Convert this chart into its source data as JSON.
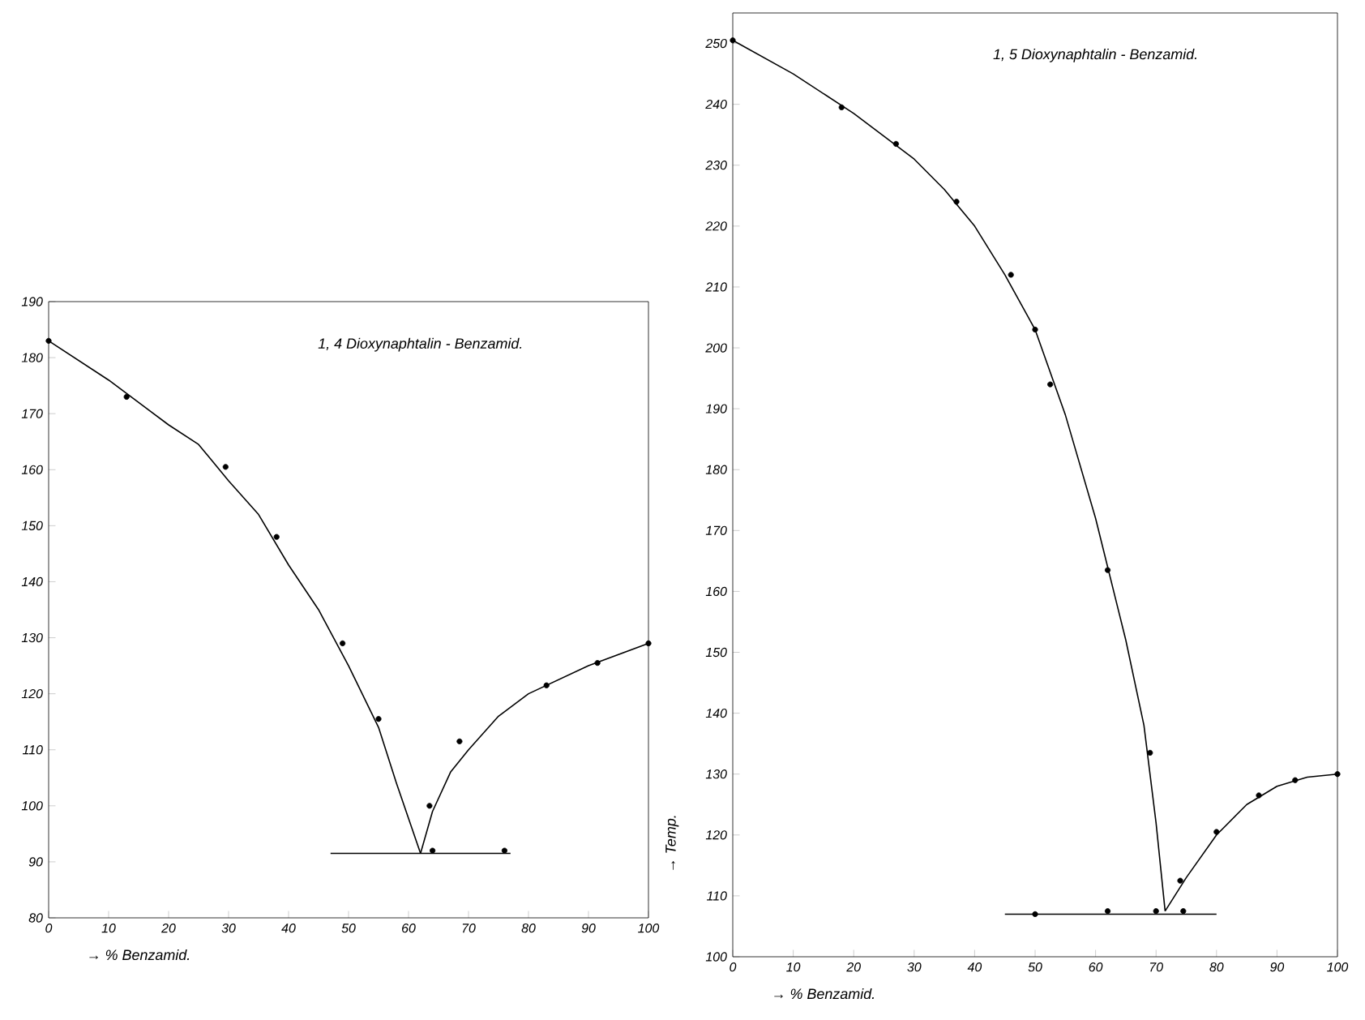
{
  "chart_data": [
    {
      "type": "line",
      "title": "1, 4 Dioxynaphtalin - Benzamid.",
      "xlabel": "→ % Benzamid.",
      "xlim": [
        0,
        100
      ],
      "ylim": [
        80,
        190
      ],
      "xticks": [
        0,
        10,
        20,
        30,
        40,
        50,
        60,
        70,
        80,
        90,
        100
      ],
      "yticks": [
        80,
        90,
        100,
        110,
        120,
        130,
        140,
        150,
        160,
        170,
        180,
        190
      ],
      "grid": false,
      "series": [
        {
          "color": "#000000",
          "marker": "none",
          "x": [
            0,
            10,
            20,
            25,
            30,
            35,
            40,
            45,
            50,
            55,
            58,
            62
          ],
          "values": [
            183,
            176,
            168,
            164.5,
            158,
            152,
            143,
            135,
            125,
            114,
            104,
            91.5
          ]
        },
        {
          "color": "#000000",
          "marker": "none",
          "x": [
            62,
            64,
            67,
            70,
            75,
            80,
            90,
            100
          ],
          "values": [
            91.5,
            99,
            106,
            110,
            116,
            120,
            125,
            129
          ]
        },
        {
          "color": "#000000",
          "marker": "none",
          "x": [
            47,
            77
          ],
          "values": [
            91.5,
            91.5
          ]
        },
        {
          "type": "scatter",
          "color": "#000000",
          "marker": "circle",
          "x": [
            0,
            13,
            29.5,
            38,
            49,
            55,
            63.5,
            64,
            68.5,
            76,
            83,
            91.5,
            100
          ],
          "values": [
            183,
            173,
            160.5,
            148,
            129,
            115.5,
            100,
            92,
            111.5,
            92,
            121.5,
            125.5,
            129
          ]
        }
      ]
    },
    {
      "type": "line",
      "title": "1, 5 Dioxynaphtalin - Benzamid.",
      "xlabel": "→ % Benzamid.",
      "ylabel": "→ Temp.",
      "xlim": [
        0,
        100
      ],
      "ylim": [
        100,
        255
      ],
      "xticks": [
        0,
        10,
        20,
        30,
        40,
        50,
        60,
        70,
        80,
        90,
        100
      ],
      "yticks": [
        100,
        110,
        120,
        130,
        140,
        150,
        160,
        170,
        180,
        190,
        200,
        210,
        220,
        230,
        240,
        250
      ],
      "grid": false,
      "series": [
        {
          "color": "#000000",
          "marker": "none",
          "x": [
            0,
            10,
            20,
            30,
            35,
            40,
            45,
            50,
            55,
            60,
            65,
            68,
            70,
            71.5
          ],
          "values": [
            250.5,
            245,
            238.5,
            231,
            226,
            220,
            212,
            203,
            189,
            172,
            152,
            138,
            122,
            107.5
          ]
        },
        {
          "color": "#000000",
          "marker": "none",
          "x": [
            71.5,
            75,
            80,
            85,
            90,
            95,
            100
          ],
          "values": [
            107.5,
            113,
            120,
            125,
            128,
            129.5,
            130
          ]
        },
        {
          "color": "#000000",
          "marker": "none",
          "x": [
            45,
            80
          ],
          "values": [
            107,
            107
          ]
        },
        {
          "type": "scatter",
          "color": "#000000",
          "marker": "circle",
          "x": [
            0,
            18,
            27,
            37,
            46,
            50,
            52.5,
            62,
            69,
            74,
            80,
            87,
            93,
            100,
            50,
            62,
            70,
            74.5
          ],
          "values": [
            250.5,
            239.5,
            233.5,
            224,
            212,
            203,
            194,
            163.5,
            133.5,
            112.5,
            120.5,
            126.5,
            129,
            130,
            107,
            107.5,
            107.5,
            107.5
          ]
        }
      ]
    }
  ]
}
